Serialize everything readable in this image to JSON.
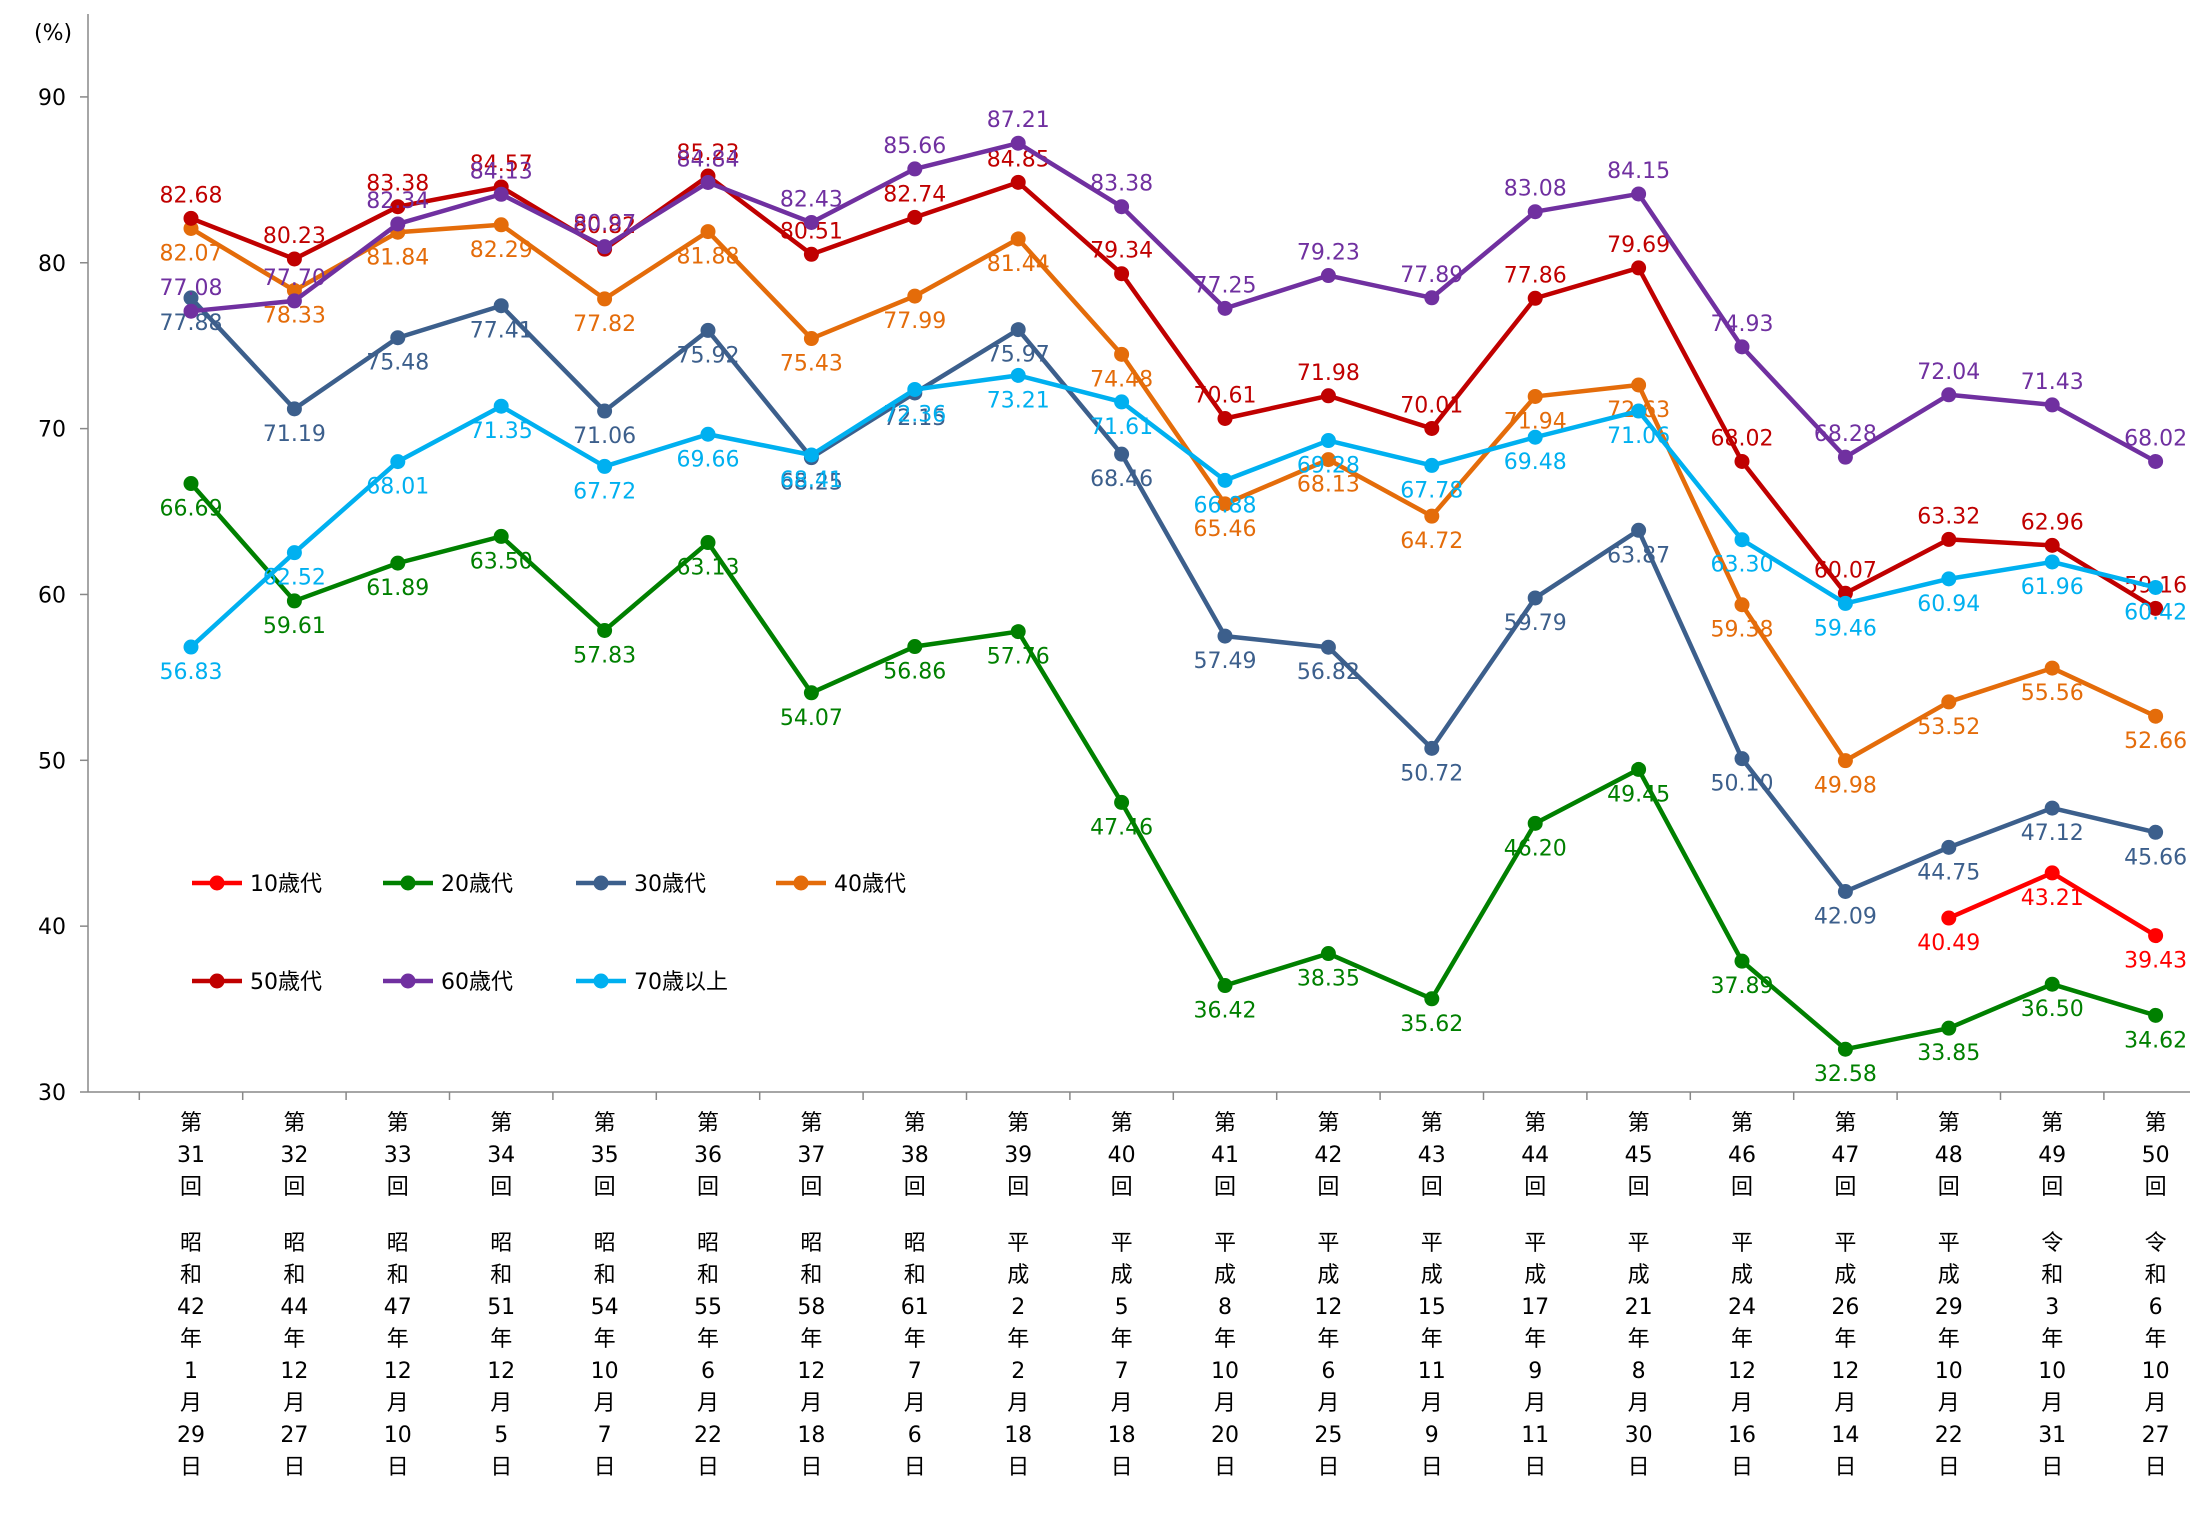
{
  "chart_data": {
    "type": "line",
    "ylabel": "(%)",
    "ylim": [
      30,
      95
    ],
    "yticks": [
      30,
      40,
      50,
      60,
      70,
      80,
      90
    ],
    "categories": [
      [
        "第31回",
        "昭和42年1月29日"
      ],
      [
        "第32回",
        "昭和44年12月27日"
      ],
      [
        "第33回",
        "昭和47年12月10日"
      ],
      [
        "第34回",
        "昭和51年12月5日"
      ],
      [
        "第35回",
        "昭和54年10月7日"
      ],
      [
        "第36回",
        "昭和55年6月22日"
      ],
      [
        "第37回",
        "昭和58年12月18日"
      ],
      [
        "第38回",
        "昭和61年7月6日"
      ],
      [
        "第39回",
        "平成2年2月18日"
      ],
      [
        "第40回",
        "平成5年7月18日"
      ],
      [
        "第41回",
        "平成8年10月20日"
      ],
      [
        "第42回",
        "平成12年6月25日"
      ],
      [
        "第43回",
        "平成15年11月9日"
      ],
      [
        "第44回",
        "平成17年9月11日"
      ],
      [
        "第45回",
        "平成21年8月30日"
      ],
      [
        "第46回",
        "平成24年12月16日"
      ],
      [
        "第47回",
        "平成26年12月14日"
      ],
      [
        "第48回",
        "平成29年10月22日"
      ],
      [
        "第49回",
        "令和3年10月31日"
      ],
      [
        "第50回",
        "令和6年10月27日"
      ]
    ],
    "series": [
      {
        "name": "10歳代",
        "color": "#ff0000",
        "values": [
          null,
          null,
          null,
          null,
          null,
          null,
          null,
          null,
          null,
          null,
          null,
          null,
          null,
          null,
          null,
          null,
          null,
          40.49,
          43.21,
          39.43
        ],
        "value_labels": [
          null,
          null,
          null,
          null,
          null,
          null,
          null,
          null,
          null,
          null,
          null,
          null,
          null,
          null,
          null,
          null,
          null,
          "40.49",
          "43.21",
          "39.43"
        ]
      },
      {
        "name": "20歳代",
        "color": "#008000",
        "values": [
          66.69,
          59.61,
          61.89,
          63.5,
          57.83,
          63.13,
          54.07,
          56.86,
          57.76,
          47.46,
          36.42,
          38.35,
          35.62,
          46.2,
          49.45,
          37.89,
          32.58,
          33.85,
          36.5,
          34.62
        ],
        "value_labels": [
          "66.69",
          "59.61",
          "61.89",
          "63.50",
          "57.83",
          "63.13",
          "54.07",
          "56.86",
          "57.76",
          "47.46",
          "36.42",
          "38.35",
          "35.62",
          "46.20",
          "49.45",
          "37.89",
          "32.58",
          "33.85",
          "36.50",
          "34.62"
        ]
      },
      {
        "name": "30歳代",
        "color": "#3c5f8c",
        "values": [
          77.88,
          71.19,
          75.48,
          77.41,
          71.06,
          75.92,
          68.25,
          72.15,
          75.97,
          68.46,
          57.49,
          56.82,
          50.72,
          59.79,
          63.87,
          50.1,
          42.09,
          44.75,
          47.12,
          45.66
        ],
        "value_labels": [
          "77.88",
          "71.19",
          "75.48",
          "77.41",
          "71.06",
          "75.92",
          "68.25",
          "72.15",
          "75.97",
          "68.46",
          "57.49",
          "56.82",
          "50.72",
          "59.79",
          "63.87",
          "50.10",
          "42.09",
          "44.75",
          "47.12",
          "45.66"
        ]
      },
      {
        "name": "40歳代",
        "color": "#e46c0a",
        "values": [
          82.07,
          78.33,
          81.84,
          82.29,
          77.82,
          81.88,
          75.43,
          77.99,
          81.44,
          74.48,
          65.46,
          68.13,
          64.72,
          71.94,
          72.63,
          59.38,
          49.98,
          53.52,
          55.56,
          52.66
        ],
        "value_labels": [
          "82.07",
          "78.33",
          "81.84",
          "82.29",
          "77.82",
          "81.88",
          "75.43",
          "77.99",
          "81.44",
          "74.48",
          "65.46",
          "68.13",
          "64.72",
          "71.94",
          "72.63",
          "59.38",
          "49.98",
          "53.52",
          "55.56",
          "52.66"
        ]
      },
      {
        "name": "50歳代",
        "color": "#c00000",
        "values": [
          82.68,
          80.23,
          83.38,
          84.57,
          80.82,
          85.23,
          80.51,
          82.74,
          84.85,
          79.34,
          70.61,
          71.98,
          70.01,
          77.86,
          79.69,
          68.02,
          60.07,
          63.32,
          62.96,
          59.16
        ],
        "value_labels": [
          "82.68",
          "80.23",
          "83.38",
          "84.57",
          "80.82",
          "85.23",
          "80.51",
          "82.74",
          "84.85",
          "79.34",
          "70.61",
          "71.98",
          "70.01",
          "77.86",
          "79.69",
          "68.02",
          "60.07",
          "63.32",
          "62.96",
          "59.16"
        ]
      },
      {
        "name": "60歳代",
        "color": "#7030a0",
        "values": [
          77.08,
          77.7,
          82.34,
          84.13,
          80.97,
          84.84,
          82.43,
          85.66,
          87.21,
          83.38,
          77.25,
          79.23,
          77.89,
          83.08,
          84.15,
          74.93,
          68.28,
          72.04,
          71.43,
          68.02
        ],
        "value_labels": [
          "77.08",
          "77.70",
          "82.34",
          "84.13",
          "80.97",
          "84.84",
          "82.43",
          "85.66",
          "87.21",
          "83.38",
          "77.25",
          "79.23",
          "77.89",
          "83.08",
          "84.15",
          "74.93",
          "68.28",
          "72.04",
          "71.43",
          "68.02"
        ]
      },
      {
        "name": "70歳以上",
        "color": "#00b0f0",
        "values": [
          56.83,
          62.52,
          68.01,
          71.35,
          67.72,
          69.66,
          68.41,
          72.36,
          73.21,
          71.61,
          66.88,
          69.28,
          67.78,
          69.48,
          71.06,
          63.3,
          59.46,
          60.94,
          61.96,
          60.42
        ],
        "value_labels": [
          "56.83",
          "62.52",
          "68.01",
          "71.35",
          "67.72",
          "69.66",
          "68.41",
          "72.36",
          "73.21",
          "71.61",
          "66.88",
          "69.28",
          "67.78",
          "69.48",
          "71.06",
          "63.30",
          "59.46",
          "60.94",
          "61.96",
          "60.42"
        ]
      }
    ]
  }
}
